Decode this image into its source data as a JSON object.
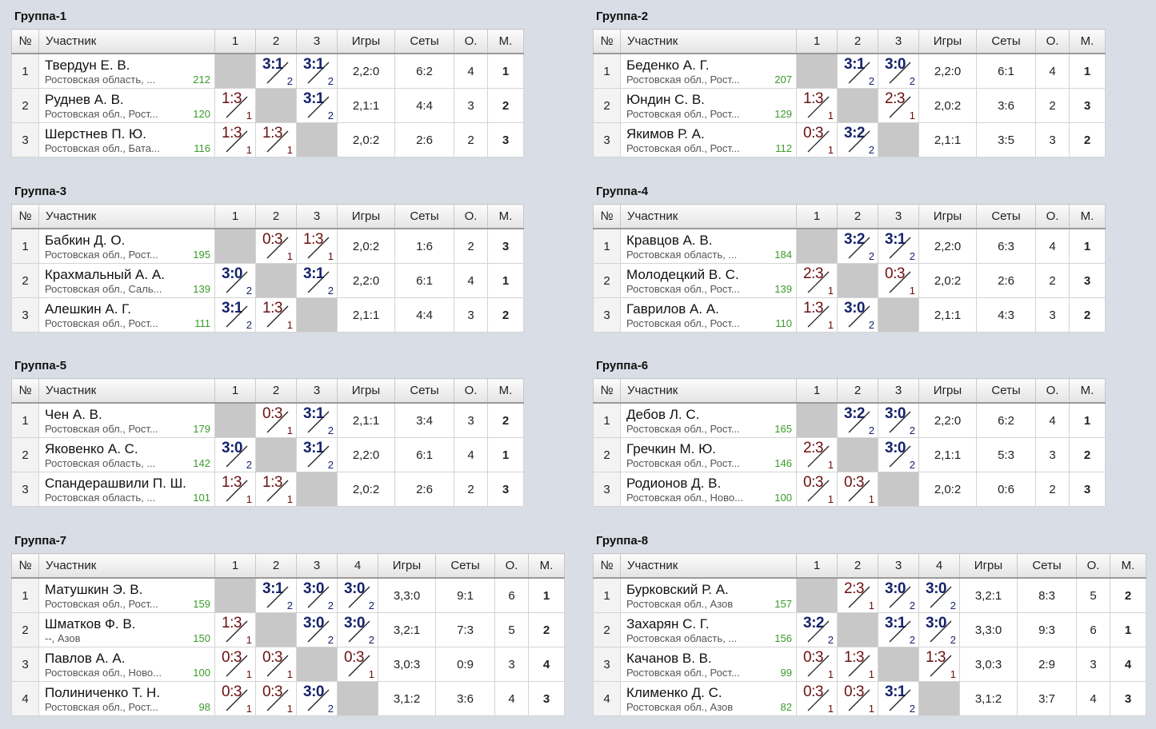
{
  "headers": {
    "num": "№",
    "participant": "Участник",
    "games": "Игры",
    "sets": "Сеты",
    "points": "О.",
    "place": "М."
  },
  "groups": [
    {
      "title": "Группа-1",
      "players": [
        {
          "num": "1",
          "name": "Твердун Е. В.",
          "region": "Ростовская область, ...",
          "rating": "212",
          "results": [
            null,
            {
              "s": "3:1",
              "p": "2",
              "w": true
            },
            {
              "s": "3:1",
              "p": "2",
              "w": true
            }
          ],
          "games": "2,2:0",
          "sets": "6:2",
          "points": "4",
          "place": "1"
        },
        {
          "num": "2",
          "name": "Руднев А. В.",
          "region": "Ростовская обл., Рост...",
          "rating": "120",
          "results": [
            {
              "s": "1:3",
              "p": "1",
              "w": false
            },
            null,
            {
              "s": "3:1",
              "p": "2",
              "w": true
            }
          ],
          "games": "2,1:1",
          "sets": "4:4",
          "points": "3",
          "place": "2"
        },
        {
          "num": "3",
          "name": "Шерстнев П. Ю.",
          "region": "Ростовская обл., Бата...",
          "rating": "116",
          "results": [
            {
              "s": "1:3",
              "p": "1",
              "w": false
            },
            {
              "s": "1:3",
              "p": "1",
              "w": false
            },
            null
          ],
          "games": "2,0:2",
          "sets": "2:6",
          "points": "2",
          "place": "3"
        }
      ]
    },
    {
      "title": "Группа-2",
      "players": [
        {
          "num": "1",
          "name": "Беденко А. Г.",
          "region": "Ростовская обл., Рост...",
          "rating": "207",
          "results": [
            null,
            {
              "s": "3:1",
              "p": "2",
              "w": true
            },
            {
              "s": "3:0",
              "p": "2",
              "w": true
            }
          ],
          "games": "2,2:0",
          "sets": "6:1",
          "points": "4",
          "place": "1"
        },
        {
          "num": "2",
          "name": "Юндин С. В.",
          "region": "Ростовская обл., Рост...",
          "rating": "129",
          "results": [
            {
              "s": "1:3",
              "p": "1",
              "w": false
            },
            null,
            {
              "s": "2:3",
              "p": "1",
              "w": false
            }
          ],
          "games": "2,0:2",
          "sets": "3:6",
          "points": "2",
          "place": "3"
        },
        {
          "num": "3",
          "name": "Якимов Р. А.",
          "region": "Ростовская обл., Рост...",
          "rating": "112",
          "results": [
            {
              "s": "0:3",
              "p": "1",
              "w": false
            },
            {
              "s": "3:2",
              "p": "2",
              "w": true
            },
            null
          ],
          "games": "2,1:1",
          "sets": "3:5",
          "points": "3",
          "place": "2"
        }
      ]
    },
    {
      "title": "Группа-3",
      "players": [
        {
          "num": "1",
          "name": "Бабкин Д. О.",
          "region": "Ростовская обл., Рост...",
          "rating": "195",
          "results": [
            null,
            {
              "s": "0:3",
              "p": "1",
              "w": false
            },
            {
              "s": "1:3",
              "p": "1",
              "w": false
            }
          ],
          "games": "2,0:2",
          "sets": "1:6",
          "points": "2",
          "place": "3"
        },
        {
          "num": "2",
          "name": "Крахмальный А. А.",
          "region": "Ростовская обл., Саль...",
          "rating": "139",
          "results": [
            {
              "s": "3:0",
              "p": "2",
              "w": true
            },
            null,
            {
              "s": "3:1",
              "p": "2",
              "w": true
            }
          ],
          "games": "2,2:0",
          "sets": "6:1",
          "points": "4",
          "place": "1"
        },
        {
          "num": "3",
          "name": "Алешкин А. Г.",
          "region": "Ростовская обл., Рост...",
          "rating": "111",
          "results": [
            {
              "s": "3:1",
              "p": "2",
              "w": true
            },
            {
              "s": "1:3",
              "p": "1",
              "w": false
            },
            null
          ],
          "games": "2,1:1",
          "sets": "4:4",
          "points": "3",
          "place": "2"
        }
      ]
    },
    {
      "title": "Группа-4",
      "players": [
        {
          "num": "1",
          "name": "Кравцов А. В.",
          "region": "Ростовская область, ...",
          "rating": "184",
          "results": [
            null,
            {
              "s": "3:2",
              "p": "2",
              "w": true
            },
            {
              "s": "3:1",
              "p": "2",
              "w": true
            }
          ],
          "games": "2,2:0",
          "sets": "6:3",
          "points": "4",
          "place": "1"
        },
        {
          "num": "2",
          "name": "Молодецкий В. С.",
          "region": "Ростовская обл., Рост...",
          "rating": "139",
          "results": [
            {
              "s": "2:3",
              "p": "1",
              "w": false
            },
            null,
            {
              "s": "0:3",
              "p": "1",
              "w": false
            }
          ],
          "games": "2,0:2",
          "sets": "2:6",
          "points": "2",
          "place": "3"
        },
        {
          "num": "3",
          "name": "Гаврилов А. А.",
          "region": "Ростовская обл., Рост...",
          "rating": "110",
          "results": [
            {
              "s": "1:3",
              "p": "1",
              "w": false
            },
            {
              "s": "3:0",
              "p": "2",
              "w": true
            },
            null
          ],
          "games": "2,1:1",
          "sets": "4:3",
          "points": "3",
          "place": "2"
        }
      ]
    },
    {
      "title": "Группа-5",
      "players": [
        {
          "num": "1",
          "name": "Чен А. В.",
          "region": "Ростовская обл., Рост...",
          "rating": "179",
          "results": [
            null,
            {
              "s": "0:3",
              "p": "1",
              "w": false
            },
            {
              "s": "3:1",
              "p": "2",
              "w": true
            }
          ],
          "games": "2,1:1",
          "sets": "3:4",
          "points": "3",
          "place": "2"
        },
        {
          "num": "2",
          "name": "Яковенко А. С.",
          "region": "Ростовская область, ...",
          "rating": "142",
          "results": [
            {
              "s": "3:0",
              "p": "2",
              "w": true
            },
            null,
            {
              "s": "3:1",
              "p": "2",
              "w": true
            }
          ],
          "games": "2,2:0",
          "sets": "6:1",
          "points": "4",
          "place": "1"
        },
        {
          "num": "3",
          "name": "Спандерашвили П. Ш.",
          "region": "Ростовская область, ...",
          "rating": "101",
          "results": [
            {
              "s": "1:3",
              "p": "1",
              "w": false
            },
            {
              "s": "1:3",
              "p": "1",
              "w": false
            },
            null
          ],
          "games": "2,0:2",
          "sets": "2:6",
          "points": "2",
          "place": "3"
        }
      ]
    },
    {
      "title": "Группа-6",
      "players": [
        {
          "num": "1",
          "name": "Дебов Л. С.",
          "region": "Ростовская обл., Рост...",
          "rating": "165",
          "results": [
            null,
            {
              "s": "3:2",
              "p": "2",
              "w": true
            },
            {
              "s": "3:0",
              "p": "2",
              "w": true
            }
          ],
          "games": "2,2:0",
          "sets": "6:2",
          "points": "4",
          "place": "1"
        },
        {
          "num": "2",
          "name": "Гречкин М. Ю.",
          "region": "Ростовская обл., Рост...",
          "rating": "146",
          "results": [
            {
              "s": "2:3",
              "p": "1",
              "w": false
            },
            null,
            {
              "s": "3:0",
              "p": "2",
              "w": true
            }
          ],
          "games": "2,1:1",
          "sets": "5:3",
          "points": "3",
          "place": "2"
        },
        {
          "num": "3",
          "name": "Родионов Д. В.",
          "region": "Ростовская обл., Ново...",
          "rating": "100",
          "results": [
            {
              "s": "0:3",
              "p": "1",
              "w": false
            },
            {
              "s": "0:3",
              "p": "1",
              "w": false
            },
            null
          ],
          "games": "2,0:2",
          "sets": "0:6",
          "points": "2",
          "place": "3"
        }
      ]
    },
    {
      "title": "Группа-7",
      "players": [
        {
          "num": "1",
          "name": "Матушкин Э. В.",
          "region": "Ростовская обл., Рост...",
          "rating": "159",
          "results": [
            null,
            {
              "s": "3:1",
              "p": "2",
              "w": true
            },
            {
              "s": "3:0",
              "p": "2",
              "w": true
            },
            {
              "s": "3:0",
              "p": "2",
              "w": true
            }
          ],
          "games": "3,3:0",
          "sets": "9:1",
          "points": "6",
          "place": "1"
        },
        {
          "num": "2",
          "name": "Шматков Ф. В.",
          "region": "--, Азов",
          "rating": "150",
          "results": [
            {
              "s": "1:3",
              "p": "1",
              "w": false
            },
            null,
            {
              "s": "3:0",
              "p": "2",
              "w": true
            },
            {
              "s": "3:0",
              "p": "2",
              "w": true
            }
          ],
          "games": "3,2:1",
          "sets": "7:3",
          "points": "5",
          "place": "2"
        },
        {
          "num": "3",
          "name": "Павлов А. А.",
          "region": "Ростовская обл., Ново...",
          "rating": "100",
          "results": [
            {
              "s": "0:3",
              "p": "1",
              "w": false
            },
            {
              "s": "0:3",
              "p": "1",
              "w": false
            },
            null,
            {
              "s": "0:3",
              "p": "1",
              "w": false
            }
          ],
          "games": "3,0:3",
          "sets": "0:9",
          "points": "3",
          "place": "4"
        },
        {
          "num": "4",
          "name": "Полиниченко Т. Н.",
          "region": "Ростовская обл., Рост...",
          "rating": "98",
          "results": [
            {
              "s": "0:3",
              "p": "1",
              "w": false
            },
            {
              "s": "0:3",
              "p": "1",
              "w": false
            },
            {
              "s": "3:0",
              "p": "2",
              "w": true
            },
            null
          ],
          "games": "3,1:2",
          "sets": "3:6",
          "points": "4",
          "place": "3"
        }
      ]
    },
    {
      "title": "Группа-8",
      "players": [
        {
          "num": "1",
          "name": "Бурковский Р. А.",
          "region": "Ростовская обл., Азов",
          "rating": "157",
          "results": [
            null,
            {
              "s": "2:3",
              "p": "1",
              "w": false
            },
            {
              "s": "3:0",
              "p": "2",
              "w": true
            },
            {
              "s": "3:0",
              "p": "2",
              "w": true
            }
          ],
          "games": "3,2:1",
          "sets": "8:3",
          "points": "5",
          "place": "2"
        },
        {
          "num": "2",
          "name": "Захарян С. Г.",
          "region": "Ростовская область, ...",
          "rating": "156",
          "results": [
            {
              "s": "3:2",
              "p": "2",
              "w": true
            },
            null,
            {
              "s": "3:1",
              "p": "2",
              "w": true
            },
            {
              "s": "3:0",
              "p": "2",
              "w": true
            }
          ],
          "games": "3,3:0",
          "sets": "9:3",
          "points": "6",
          "place": "1"
        },
        {
          "num": "3",
          "name": "Качанов В. В.",
          "region": "Ростовская обл., Рост...",
          "rating": "99",
          "results": [
            {
              "s": "0:3",
              "p": "1",
              "w": false
            },
            {
              "s": "1:3",
              "p": "1",
              "w": false
            },
            null,
            {
              "s": "1:3",
              "p": "1",
              "w": false
            }
          ],
          "games": "3,0:3",
          "sets": "2:9",
          "points": "3",
          "place": "4"
        },
        {
          "num": "4",
          "name": "Клименко Д. С.",
          "region": "Ростовская обл., Азов",
          "rating": "82",
          "results": [
            {
              "s": "0:3",
              "p": "1",
              "w": false
            },
            {
              "s": "0:3",
              "p": "1",
              "w": false
            },
            {
              "s": "3:1",
              "p": "2",
              "w": true
            },
            null
          ],
          "games": "3,1:2",
          "sets": "3:7",
          "points": "4",
          "place": "3"
        }
      ]
    }
  ]
}
